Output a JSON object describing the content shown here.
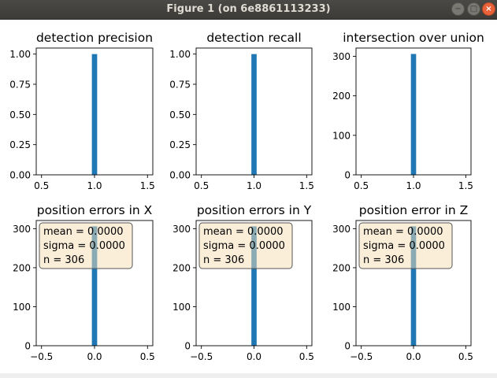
{
  "window": {
    "title": "Figure 1 (on 6e8861113233)",
    "buttons": {
      "minimize": "−",
      "maximize": "□",
      "close": "×"
    }
  },
  "colors": {
    "bar": "#1f77b4",
    "box_face": "#f5deb3",
    "box_edge": "#555555",
    "text": "#000000"
  },
  "chart_data": [
    {
      "type": "bar",
      "title": "detection precision",
      "xlim": [
        0.45,
        1.55
      ],
      "ylim": [
        0,
        1.05
      ],
      "xticks": [
        0.5,
        1.0,
        1.5
      ],
      "xtick_labels": [
        "0.5",
        "1.0",
        "1.5"
      ],
      "yticks": [
        0,
        0.25,
        0.5,
        0.75,
        1.0
      ],
      "ytick_labels": [
        "0.00",
        "0.25",
        "0.50",
        "0.75",
        "1.00"
      ],
      "bars": [
        {
          "x0": 0.975,
          "x1": 1.025,
          "value": 1.0
        }
      ]
    },
    {
      "type": "bar",
      "title": "detection recall",
      "xlim": [
        0.45,
        1.55
      ],
      "ylim": [
        0,
        1.05
      ],
      "xticks": [
        0.5,
        1.0,
        1.5
      ],
      "xtick_labels": [
        "0.5",
        "1.0",
        "1.5"
      ],
      "yticks": [
        0,
        0.25,
        0.5,
        0.75,
        1.0
      ],
      "ytick_labels": [
        "0.00",
        "0.25",
        "0.50",
        "0.75",
        "1.00"
      ],
      "bars": [
        {
          "x0": 0.975,
          "x1": 1.025,
          "value": 1.0
        }
      ]
    },
    {
      "type": "bar",
      "title": "intersection over union",
      "xlim": [
        0.45,
        1.55
      ],
      "ylim": [
        0,
        321
      ],
      "xticks": [
        0.5,
        1.0,
        1.5
      ],
      "xtick_labels": [
        "0.5",
        "1.0",
        "1.5"
      ],
      "yticks": [
        0,
        100,
        200,
        300
      ],
      "ytick_labels": [
        "0",
        "100",
        "200",
        "300"
      ],
      "bars": [
        {
          "x0": 0.975,
          "x1": 1.025,
          "value": 306
        }
      ]
    },
    {
      "type": "bar",
      "title": "position errors in X",
      "xlim": [
        -0.55,
        0.55
      ],
      "ylim": [
        0,
        321
      ],
      "xticks": [
        -0.5,
        0.0,
        0.5
      ],
      "xtick_labels": [
        "−0.5",
        "0.0",
        "0.5"
      ],
      "yticks": [
        0,
        100,
        200,
        300
      ],
      "ytick_labels": [
        "0",
        "100",
        "200",
        "300"
      ],
      "bars": [
        {
          "x0": -0.025,
          "x1": 0.025,
          "value": 306
        }
      ],
      "annotation": [
        "mean = 0.0000",
        "sigma = 0.0000",
        "n = 306"
      ]
    },
    {
      "type": "bar",
      "title": "position errors in Y",
      "xlim": [
        -0.55,
        0.55
      ],
      "ylim": [
        0,
        321
      ],
      "xticks": [
        -0.5,
        0.0,
        0.5
      ],
      "xtick_labels": [
        "−0.5",
        "0.0",
        "0.5"
      ],
      "yticks": [
        0,
        100,
        200,
        300
      ],
      "ytick_labels": [
        "0",
        "100",
        "200",
        "300"
      ],
      "bars": [
        {
          "x0": -0.025,
          "x1": 0.025,
          "value": 306
        }
      ],
      "annotation": [
        "mean = 0.0000",
        "sigma = 0.0000",
        "n = 306"
      ]
    },
    {
      "type": "bar",
      "title": "position error in Z",
      "xlim": [
        -0.55,
        0.55
      ],
      "ylim": [
        0,
        321
      ],
      "xticks": [
        -0.5,
        0.0,
        0.5
      ],
      "xtick_labels": [
        "−0.5",
        "0.0",
        "0.5"
      ],
      "yticks": [
        0,
        100,
        200,
        300
      ],
      "ytick_labels": [
        "0",
        "100",
        "200",
        "300"
      ],
      "bars": [
        {
          "x0": -0.025,
          "x1": 0.025,
          "value": 306
        }
      ],
      "annotation": [
        "mean = 0.0000",
        "sigma = 0.0000",
        "n = 306"
      ]
    }
  ]
}
